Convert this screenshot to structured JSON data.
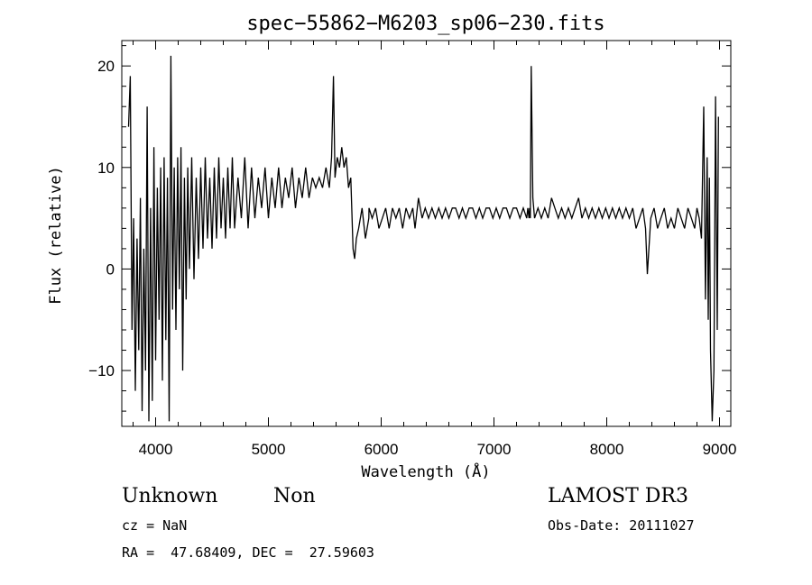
{
  "chart_data": {
    "type": "line",
    "title": "spec−55862−M6203_sp06−230.fits",
    "xlabel": "Wavelength (Å)",
    "ylabel": "Flux (relative)",
    "xlim": [
      3700,
      9100
    ],
    "ylim": [
      -15.5,
      22.5
    ],
    "xticks": [
      4000,
      5000,
      6000,
      7000,
      8000,
      9000
    ],
    "xtick_labels": [
      "4000",
      "5000",
      "6000",
      "7000",
      "8000",
      "9000"
    ],
    "yticks": [
      -10,
      0,
      10,
      20
    ],
    "ytick_labels": [
      "−10",
      "0",
      "10",
      "20"
    ],
    "x_minor_step": 200,
    "y_minor_step": 2,
    "series": [
      {
        "name": "flux",
        "x": [
          3760,
          3775,
          3790,
          3805,
          3820,
          3835,
          3850,
          3865,
          3880,
          3895,
          3910,
          3925,
          3940,
          3955,
          3970,
          3985,
          4000,
          4015,
          4030,
          4045,
          4060,
          4075,
          4090,
          4105,
          4120,
          4135,
          4150,
          4165,
          4180,
          4195,
          4210,
          4225,
          4240,
          4255,
          4270,
          4285,
          4300,
          4320,
          4340,
          4360,
          4380,
          4400,
          4420,
          4440,
          4460,
          4480,
          4500,
          4520,
          4540,
          4560,
          4580,
          4600,
          4620,
          4640,
          4660,
          4680,
          4700,
          4730,
          4760,
          4790,
          4820,
          4850,
          4880,
          4910,
          4940,
          4970,
          5000,
          5030,
          5060,
          5090,
          5120,
          5150,
          5180,
          5210,
          5240,
          5270,
          5300,
          5330,
          5360,
          5390,
          5420,
          5450,
          5480,
          5510,
          5540,
          5560,
          5577,
          5590,
          5610,
          5630,
          5650,
          5670,
          5690,
          5710,
          5730,
          5750,
          5765,
          5780,
          5800,
          5830,
          5860,
          5890,
          5892,
          5920,
          5950,
          5980,
          6010,
          6040,
          6070,
          6100,
          6130,
          6160,
          6190,
          6220,
          6250,
          6280,
          6300,
          6330,
          6363,
          6390,
          6420,
          6450,
          6480,
          6510,
          6540,
          6570,
          6600,
          6630,
          6660,
          6690,
          6720,
          6750,
          6780,
          6810,
          6840,
          6870,
          6900,
          6930,
          6960,
          6990,
          7020,
          7050,
          7080,
          7110,
          7140,
          7170,
          7200,
          7230,
          7260,
          7290,
          7300,
          7310,
          7316,
          7322,
          7330,
          7345,
          7360,
          7390,
          7420,
          7450,
          7480,
          7510,
          7540,
          7570,
          7600,
          7630,
          7660,
          7690,
          7720,
          7750,
          7780,
          7810,
          7840,
          7870,
          7900,
          7930,
          7960,
          7990,
          8020,
          8050,
          8080,
          8110,
          8140,
          8170,
          8200,
          8230,
          8260,
          8290,
          8320,
          8344,
          8360,
          8390,
          8420,
          8450,
          8480,
          8510,
          8540,
          8570,
          8600,
          8630,
          8660,
          8690,
          8720,
          8750,
          8780,
          8800,
          8820,
          8840,
          8860,
          8875,
          8890,
          8900,
          8910,
          8920,
          8935,
          8950,
          8965,
          8980,
          8990
        ],
        "y": [
          14,
          19,
          -6,
          5,
          -12,
          3,
          -8,
          7,
          -14,
          2,
          -10,
          16,
          -15,
          6,
          -13,
          12,
          -9,
          8,
          -5,
          10,
          -11,
          11,
          -7,
          9,
          -15,
          21,
          -4,
          10,
          -6,
          11,
          -2,
          12,
          -10,
          9,
          -3,
          10,
          0,
          11,
          -1,
          9,
          1,
          10,
          2,
          11,
          3,
          9,
          2,
          10,
          3,
          11,
          4,
          9,
          3,
          10,
          4,
          11,
          4,
          9,
          5,
          11,
          4,
          10,
          5,
          9,
          6,
          10,
          5,
          9,
          6,
          10,
          6,
          9,
          7,
          10,
          6,
          9,
          7,
          10,
          7,
          9,
          8,
          9,
          8,
          10,
          8,
          11,
          19,
          9,
          11,
          10,
          12,
          10,
          11,
          8,
          9,
          2,
          1,
          3,
          4,
          6,
          3,
          5,
          6,
          5,
          6,
          4,
          5,
          6,
          4,
          6,
          5,
          6,
          4,
          6,
          5,
          6,
          4,
          7,
          5,
          6,
          5,
          6,
          5,
          6,
          5,
          6,
          5,
          6,
          6,
          5,
          6,
          5,
          6,
          6,
          5,
          6,
          5,
          6,
          6,
          5,
          6,
          5,
          6,
          6,
          5,
          6,
          6,
          5,
          6,
          5,
          6,
          5,
          6,
          5,
          20,
          7,
          5,
          6,
          5,
          6,
          5,
          7,
          6,
          5,
          6,
          5,
          6,
          5,
          6,
          7,
          5,
          6,
          5,
          6,
          5,
          6,
          5,
          6,
          5,
          6,
          5,
          6,
          5,
          6,
          5,
          6,
          4,
          5,
          6,
          4,
          -0.5,
          5,
          6,
          4,
          5,
          6,
          4,
          5,
          4,
          6,
          5,
          4,
          6,
          5,
          4,
          6,
          5,
          3,
          16,
          -3,
          11,
          -5,
          9,
          -8,
          -15,
          -10,
          17,
          -6,
          15
        ]
      }
    ]
  },
  "footer": {
    "object_class": "Unknown",
    "object_subclass": "Non",
    "cz": "cz = NaN",
    "radec": "RA =  47.68409, DEC =  27.59603",
    "survey": "LAMOST DR3",
    "obs_date": "Obs-Date: 20111027"
  }
}
